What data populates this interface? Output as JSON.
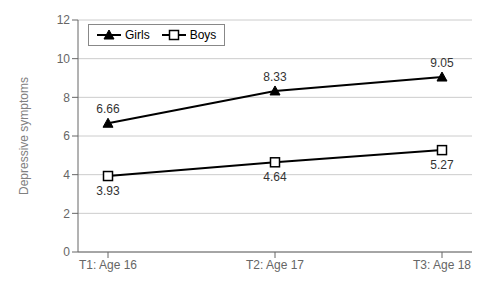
{
  "chart_data": {
    "type": "line",
    "categories": [
      "T1: Age 16",
      "T2: Age 17",
      "T3: Age 18"
    ],
    "series": [
      {
        "name": "Girls",
        "color": "#000000",
        "marker": "triangle",
        "values": [
          6.66,
          8.33,
          9.05
        ]
      },
      {
        "name": "Boys",
        "color": "#000000",
        "marker": "square",
        "values": [
          3.93,
          4.64,
          5.27
        ]
      }
    ],
    "ylabel": "Depressive symptoms",
    "ylim": [
      0,
      12
    ],
    "yticks": [
      0,
      2,
      4,
      6,
      8,
      10,
      12
    ],
    "grid": true,
    "legend": "upper left",
    "data_labels": true
  }
}
